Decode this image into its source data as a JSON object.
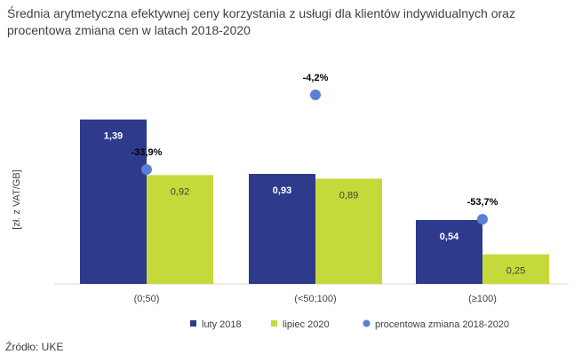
{
  "title": "Średnia arytmetyczna efektywnej ceny korzystania z usługi dla klientów indywidualnych oraz procentowa zmiana cen w latach 2018-2020",
  "footer": "Źródło: UKE",
  "colors": {
    "luty_2018": "#2e3a8c",
    "lipiec_2020": "#c5d93b",
    "change": "#5b7fd6",
    "text": "#404040",
    "axis": "#d9d9d9"
  },
  "chart_data": {
    "type": "bar",
    "title": "Średnia arytmetyczna efektywnej ceny korzystania z usługi dla klientów indywidualnych oraz procentowa zmiana cen w latach 2018-2020",
    "ylabel": "[zł. z VAT/GB]",
    "xlabel": "",
    "categories": [
      "(0;50)",
      "(<50;100)",
      "(≥100)"
    ],
    "ylim": [
      0,
      1.5
    ],
    "series": [
      {
        "name": "luty 2018",
        "values": [
          1.39,
          0.93,
          0.54
        ],
        "labels": [
          "1,39",
          "0,93",
          "0,54"
        ]
      },
      {
        "name": "lipiec 2020",
        "values": [
          0.92,
          0.89,
          0.25
        ],
        "labels": [
          "0,92",
          "0,89",
          "0,25"
        ]
      }
    ],
    "change_series": {
      "name": "procentowa zmiana 2018-2020",
      "values": [
        -33.9,
        -4.2,
        -53.7
      ],
      "labels": [
        "-33,9%",
        "-4,2%",
        "-53,7%"
      ],
      "ylim": [
        -60,
        0
      ]
    },
    "legend": [
      "luty 2018",
      "lipiec 2020",
      "procentowa zmiana 2018-2020"
    ],
    "legend_position": "bottom",
    "grid": false
  }
}
